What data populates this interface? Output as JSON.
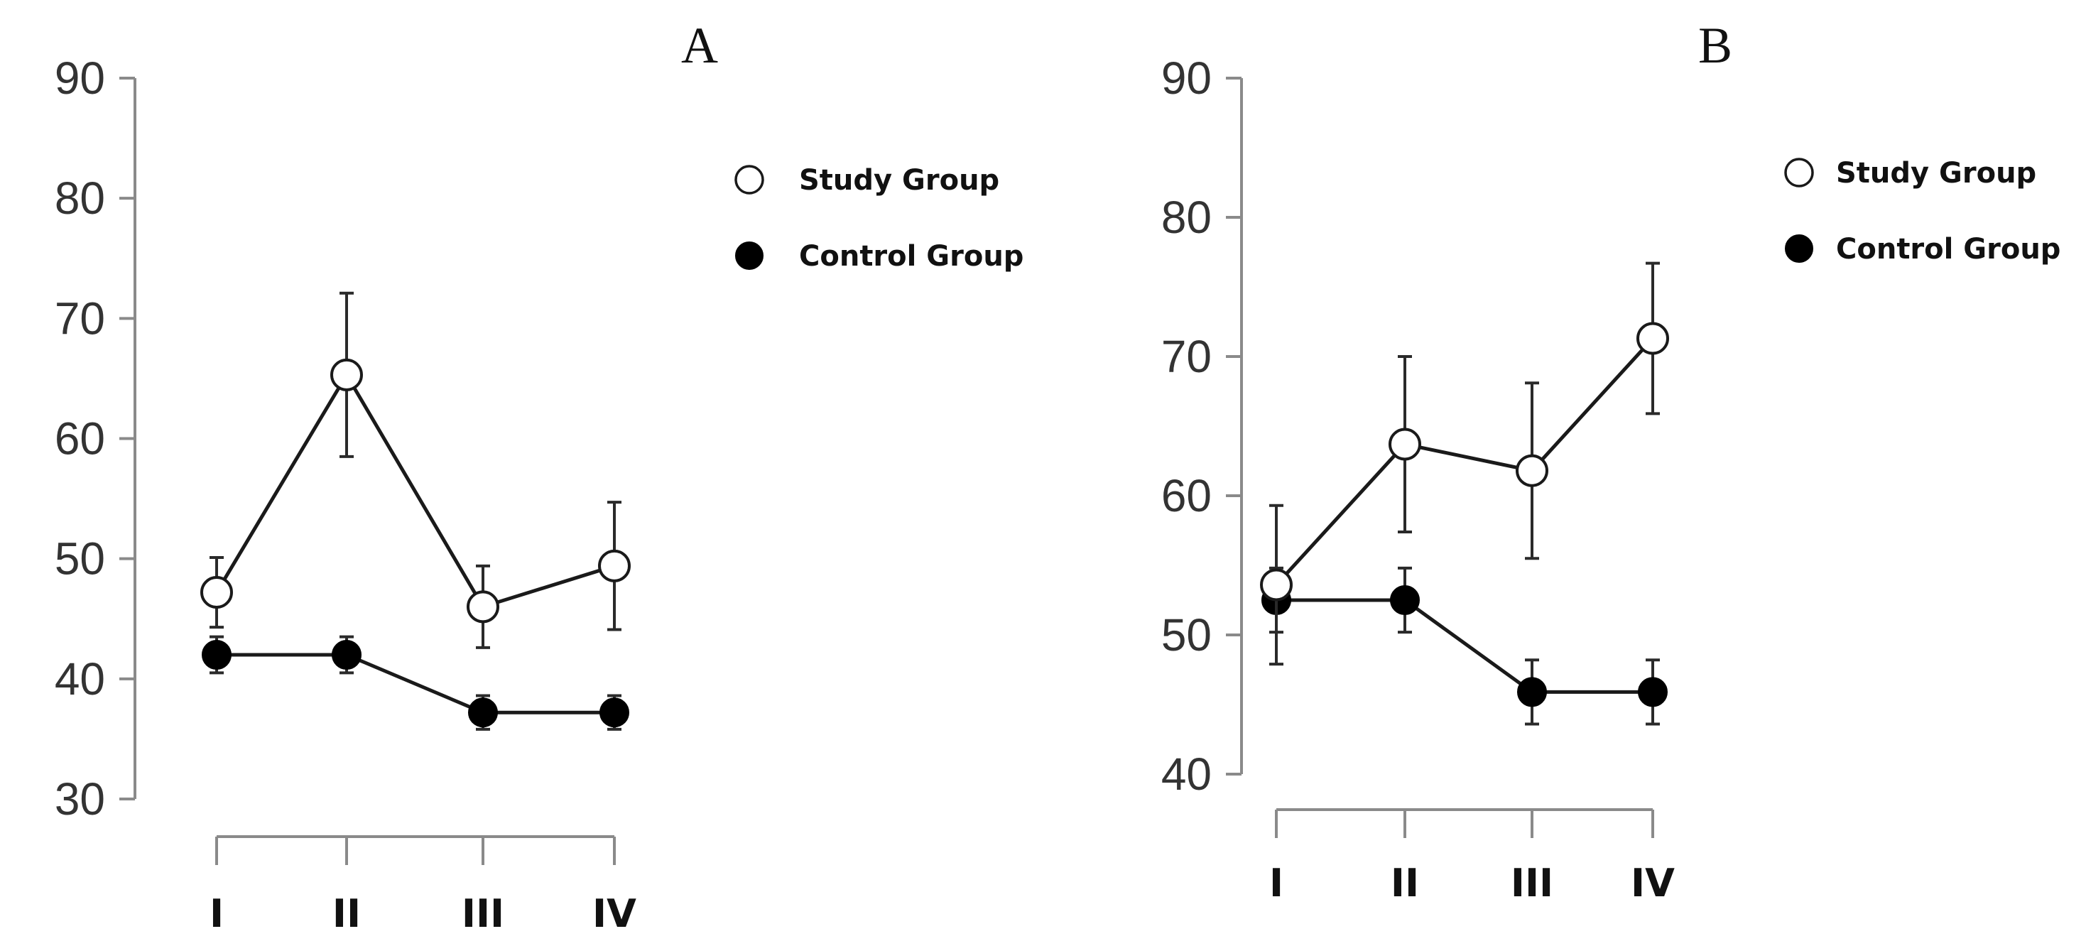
{
  "colors": {
    "study": "#ffffff",
    "control": "#000000",
    "stroke": "#1a1a1a",
    "axis": "#8a8a8a"
  },
  "chart_data": [
    {
      "type": "line",
      "panel_label": "A",
      "categories": [
        "I",
        "II",
        "III",
        "IV"
      ],
      "ylim": [
        30,
        90
      ],
      "yticks": [
        30,
        40,
        50,
        60,
        70,
        80,
        90
      ],
      "legend": {
        "placement": "top-right"
      },
      "series": [
        {
          "name": "Study Group",
          "marker": "open-circle",
          "values": [
            47.2,
            65.3,
            46.0,
            49.4
          ],
          "errors": [
            2.9,
            6.8,
            3.4,
            5.3
          ]
        },
        {
          "name": "Control Group",
          "marker": "filled-circle",
          "values": [
            42.0,
            42.0,
            37.2,
            37.2
          ],
          "errors": [
            1.5,
            1.5,
            1.4,
            1.4
          ]
        }
      ]
    },
    {
      "type": "line",
      "panel_label": "B",
      "categories": [
        "I",
        "II",
        "III",
        "IV"
      ],
      "ylim": [
        40,
        90
      ],
      "yticks": [
        40,
        50,
        60,
        70,
        80,
        90
      ],
      "legend": {
        "placement": "top-right"
      },
      "series": [
        {
          "name": "Study Group",
          "marker": "open-circle",
          "values": [
            53.6,
            63.7,
            61.8,
            71.3
          ],
          "errors": [
            5.7,
            6.3,
            6.3,
            5.4
          ]
        },
        {
          "name": "Control Group",
          "marker": "filled-circle",
          "values": [
            52.5,
            52.5,
            45.9,
            45.9
          ],
          "errors": [
            2.3,
            2.3,
            2.3,
            2.3
          ]
        }
      ]
    }
  ]
}
